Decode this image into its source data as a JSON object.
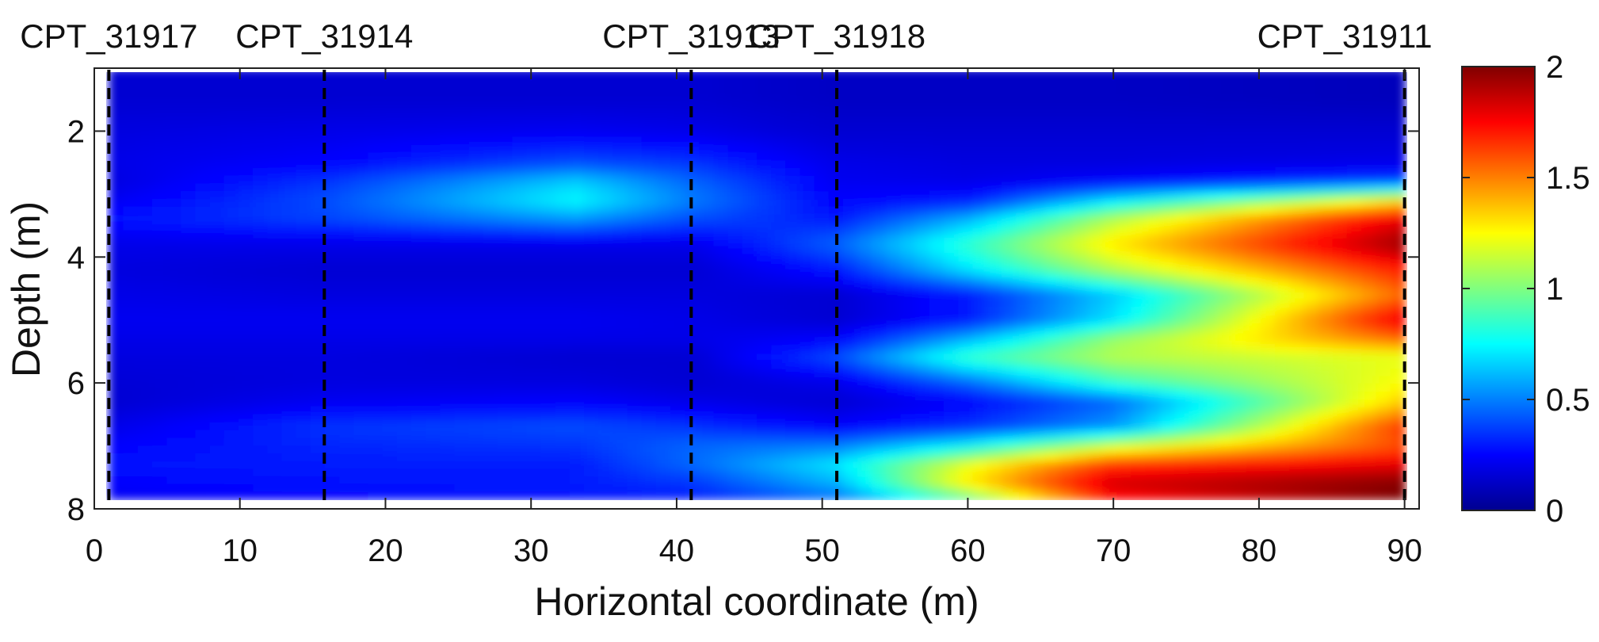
{
  "chart_data": {
    "type": "heatmap",
    "title": "",
    "xlabel": "Horizontal coordinate (m)",
    "ylabel": "Depth (m)",
    "xlim": [
      0,
      91
    ],
    "ylim": [
      8,
      1
    ],
    "x_ticks": [
      0,
      10,
      20,
      30,
      40,
      50,
      60,
      70,
      80,
      90
    ],
    "y_ticks": [
      2,
      4,
      6,
      8
    ],
    "data_extent": {
      "x": [
        1,
        90
      ],
      "y": [
        1,
        7.85
      ]
    },
    "colormap": "jet",
    "colorbar": {
      "min": 0,
      "max": 2,
      "ticks": [
        0,
        0.5,
        1,
        1.5,
        2
      ],
      "tick_labels": [
        "0",
        "0.5",
        "1",
        "1.5",
        "2"
      ]
    },
    "cpt_lines": [
      {
        "name": "CPT_31917",
        "x": 1
      },
      {
        "name": "CPT_31914",
        "x": 15.8
      },
      {
        "name": "CPT_31913",
        "x": 41
      },
      {
        "name": "CPT_31918",
        "x": 51
      },
      {
        "name": "CPT_31911",
        "x": 90
      }
    ],
    "field": {
      "x": [
        1,
        15.8,
        33,
        41,
        51,
        60,
        70,
        90
      ],
      "depth": [
        1,
        1.5,
        2,
        2.5,
        2.8,
        3.1,
        3.4,
        3.8,
        4.2,
        4.6,
        5.0,
        5.3,
        5.6,
        6.0,
        6.3,
        6.7,
        7.0,
        7.3,
        7.6,
        7.85
      ],
      "values_by_x": [
        [
          0.15,
          0.15,
          0.18,
          0.2,
          0.18,
          0.22,
          0.28,
          0.2,
          0.18,
          0.2,
          0.22,
          0.2,
          0.18,
          0.16,
          0.15,
          0.2,
          0.25,
          0.28,
          0.25,
          0.22
        ],
        [
          0.15,
          0.15,
          0.2,
          0.25,
          0.35,
          0.4,
          0.38,
          0.2,
          0.15,
          0.18,
          0.22,
          0.2,
          0.18,
          0.18,
          0.22,
          0.35,
          0.32,
          0.3,
          0.28,
          0.25
        ],
        [
          0.15,
          0.15,
          0.22,
          0.4,
          0.65,
          0.75,
          0.55,
          0.2,
          0.15,
          0.18,
          0.22,
          0.2,
          0.15,
          0.18,
          0.25,
          0.4,
          0.35,
          0.3,
          0.3,
          0.28
        ],
        [
          0.15,
          0.15,
          0.2,
          0.35,
          0.45,
          0.5,
          0.4,
          0.2,
          0.15,
          0.18,
          0.2,
          0.2,
          0.15,
          0.15,
          0.2,
          0.35,
          0.45,
          0.45,
          0.35,
          0.3
        ],
        [
          0.12,
          0.12,
          0.15,
          0.2,
          0.22,
          0.25,
          0.3,
          0.45,
          0.3,
          0.15,
          0.15,
          0.25,
          0.4,
          0.2,
          0.15,
          0.25,
          0.5,
          0.7,
          0.6,
          0.45
        ],
        [
          0.12,
          0.12,
          0.15,
          0.18,
          0.2,
          0.3,
          0.6,
          0.85,
          0.7,
          0.3,
          0.3,
          0.6,
          0.85,
          0.45,
          0.25,
          0.35,
          0.75,
          1.2,
          1.3,
          0.9
        ],
        [
          0.12,
          0.12,
          0.15,
          0.18,
          0.25,
          0.7,
          1.1,
          1.3,
          1.1,
          0.65,
          0.7,
          1.05,
          1.1,
          0.85,
          0.45,
          0.55,
          1.15,
          1.65,
          1.85,
          1.7
        ],
        [
          0.1,
          0.1,
          0.15,
          0.2,
          0.4,
          1.3,
          1.8,
          1.95,
          1.7,
          1.55,
          1.8,
          1.55,
          1.2,
          1.25,
          1.35,
          1.65,
          1.6,
          1.8,
          2.0,
          2.0
        ]
      ]
    }
  }
}
